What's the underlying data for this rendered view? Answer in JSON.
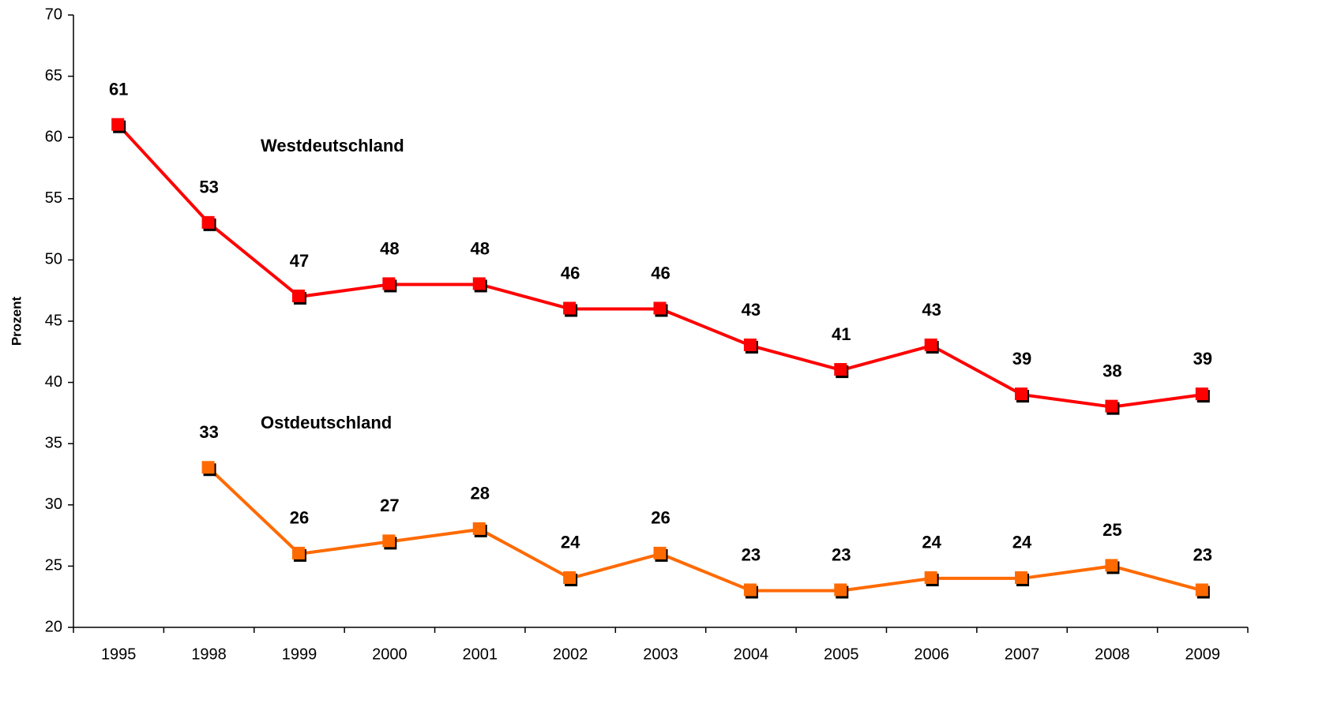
{
  "chart_data": {
    "type": "line",
    "y_label": "Prozent",
    "categories": [
      "1995",
      "1998",
      "1999",
      "2000",
      "2001",
      "2002",
      "2003",
      "2004",
      "2005",
      "2006",
      "2007",
      "2008",
      "2009"
    ],
    "series": [
      {
        "name": "Westdeutschland",
        "color": "#ff0000",
        "values": [
          61,
          53,
          47,
          48,
          48,
          46,
          46,
          43,
          41,
          43,
          39,
          38,
          39
        ]
      },
      {
        "name": "Ostdeutschland",
        "color": "#ff6a00",
        "values": [
          null,
          33,
          26,
          27,
          28,
          24,
          26,
          23,
          23,
          24,
          24,
          25,
          23
        ]
      }
    ],
    "ylim": [
      20,
      70
    ],
    "yticks": [
      20,
      25,
      30,
      35,
      40,
      45,
      50,
      55,
      60,
      65,
      70
    ],
    "grid": false
  }
}
